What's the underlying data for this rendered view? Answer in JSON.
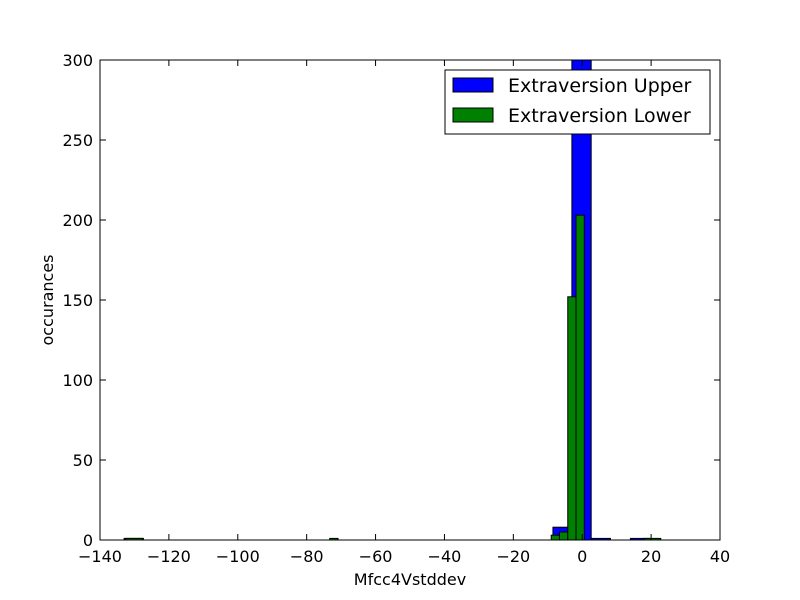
{
  "chart_data": {
    "type": "bar",
    "subtype": "overlapping-histogram",
    "title": "",
    "xlabel": "Mfcc4Vstddev",
    "ylabel": "occurances",
    "xlim": [
      -140,
      40
    ],
    "ylim": [
      0,
      300
    ],
    "xticks": [
      "−140",
      "−120",
      "−100",
      "−80",
      "−60",
      "−40",
      "−20",
      "0",
      "20",
      "40"
    ],
    "yticks": [
      "0",
      "50",
      "100",
      "150",
      "200",
      "250",
      "300"
    ],
    "grid": false,
    "legend_position": "top-right",
    "series": [
      {
        "name": "Extraversion Upper",
        "color": "#0000ff",
        "bins": [
          {
            "x0": -133.0,
            "x1": -127.4,
            "value": 1
          },
          {
            "x0": -8.5,
            "x1": -3.0,
            "value": 8
          },
          {
            "x0": -3.0,
            "x1": 2.6,
            "value": 300
          },
          {
            "x0": 2.6,
            "x1": 8.2,
            "value": 1
          },
          {
            "x0": 14.0,
            "x1": 19.5,
            "value": 1
          }
        ]
      },
      {
        "name": "Extraversion Lower",
        "color": "#008000",
        "bins": [
          {
            "x0": -132.5,
            "x1": -127.6,
            "value": 1
          },
          {
            "x0": -73.3,
            "x1": -70.9,
            "value": 1
          },
          {
            "x0": -9.0,
            "x1": -6.6,
            "value": 3
          },
          {
            "x0": -6.6,
            "x1": -4.2,
            "value": 5
          },
          {
            "x0": -4.2,
            "x1": -1.8,
            "value": 152
          },
          {
            "x0": -1.8,
            "x1": 0.6,
            "value": 203
          },
          {
            "x0": 18.0,
            "x1": 22.8,
            "value": 1
          }
        ]
      }
    ]
  }
}
